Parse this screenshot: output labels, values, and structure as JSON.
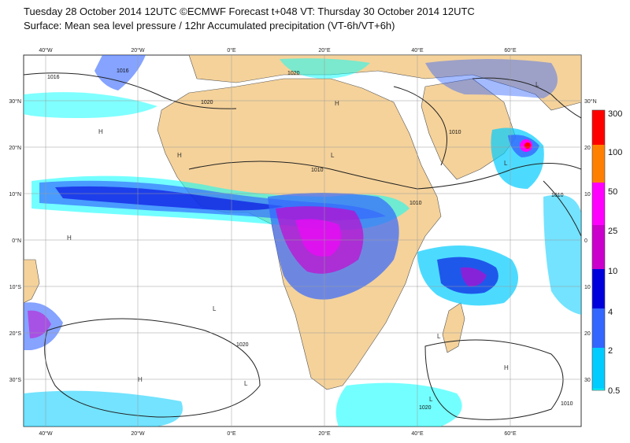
{
  "header": {
    "title_line1": "Tuesday 28 October 2014 12UTC ©ECMWF Forecast t+048 VT: Thursday 30 October 2014 12UTC",
    "title_line2": "Surface: Mean sea level pressure / 12hr Accumulated precipitation (VT-6h/VT+6h)"
  },
  "map": {
    "lon_labels_top": [
      "40°W",
      "20°W",
      "0°E",
      "20°E",
      "40°E",
      "60°E"
    ],
    "lon_labels_bottom": [
      "40°W",
      "20°W",
      "0°E",
      "20°E",
      "40°E",
      "60°E"
    ],
    "lat_labels_left": [
      "30°N",
      "20°N",
      "10°N",
      "0°N",
      "10°S",
      "20°S",
      "30°S"
    ],
    "lat_labels_right": [
      "30°N",
      "20",
      "10",
      "0",
      "10",
      "20",
      "30"
    ],
    "isobar_labels": [
      "1016",
      "1020",
      "1020",
      "1016",
      "1010",
      "1010",
      "1010",
      "1010",
      "1020",
      "1020",
      "1010"
    ],
    "pressure_markers": [
      "H",
      "H",
      "H",
      "H",
      "L",
      "L",
      "L",
      "L",
      "L",
      "H",
      "L",
      "L",
      "H"
    ],
    "colors": {
      "land": "#f5d29a",
      "ocean": "#ffffff",
      "grid": "#9a9a9a",
      "isobar": "#222222"
    }
  },
  "colorbar": {
    "levels": [
      "300",
      "100",
      "50",
      "25",
      "10",
      "4",
      "2",
      "0.5"
    ],
    "colors": [
      "#ff0000",
      "#ff8000",
      "#ff00ff",
      "#cc00cc",
      "#0000dd",
      "#3366ff",
      "#00ccff",
      "#00ffff"
    ]
  }
}
